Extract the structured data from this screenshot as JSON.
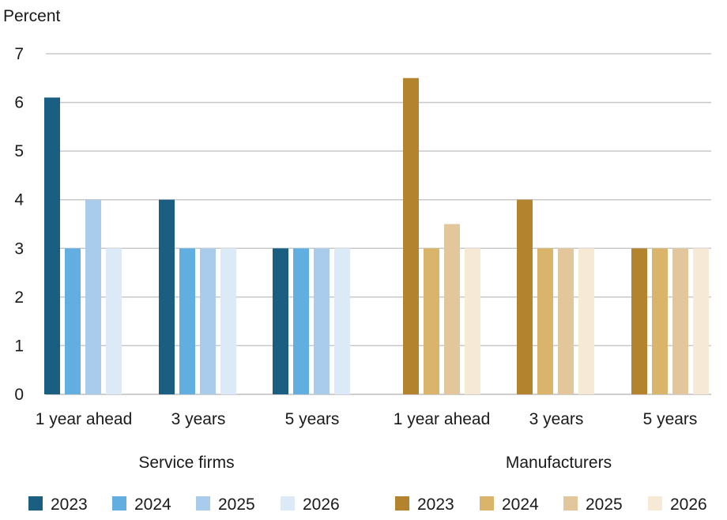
{
  "chart_data": {
    "type": "bar",
    "ylabel": "Percent",
    "ylim": [
      0,
      7
    ],
    "yticks": [
      0,
      1,
      2,
      3,
      4,
      5,
      6,
      7
    ],
    "grid": true,
    "legend_placement": "bottom",
    "groups": [
      {
        "name": "Service firms",
        "categories": [
          "1 year ahead",
          "3 years",
          "5 years"
        ],
        "series": [
          {
            "name": "2023",
            "color": "#1a5e82",
            "values": [
              6.1,
              4.0,
              3.0
            ]
          },
          {
            "name": "2024",
            "color": "#62aee0",
            "values": [
              3.0,
              3.0,
              3.0
            ]
          },
          {
            "name": "2025",
            "color": "#a9cbec",
            "values": [
              4.0,
              3.0,
              3.0
            ]
          },
          {
            "name": "2026",
            "color": "#dce9f6",
            "values": [
              3.0,
              3.0,
              3.0
            ]
          }
        ]
      },
      {
        "name": "Manufacturers",
        "categories": [
          "1 year ahead",
          "3 years",
          "5 years"
        ],
        "series": [
          {
            "name": "2023",
            "color": "#b3832e",
            "values": [
              6.5,
              4.0,
              3.0
            ]
          },
          {
            "name": "2024",
            "color": "#dbb46c",
            "values": [
              3.0,
              3.0,
              3.0
            ]
          },
          {
            "name": "2025",
            "color": "#e3c79c",
            "values": [
              3.5,
              3.0,
              3.0
            ]
          },
          {
            "name": "2026",
            "color": "#f6e9d6",
            "values": [
              3.0,
              3.0,
              3.0
            ]
          }
        ]
      }
    ]
  }
}
